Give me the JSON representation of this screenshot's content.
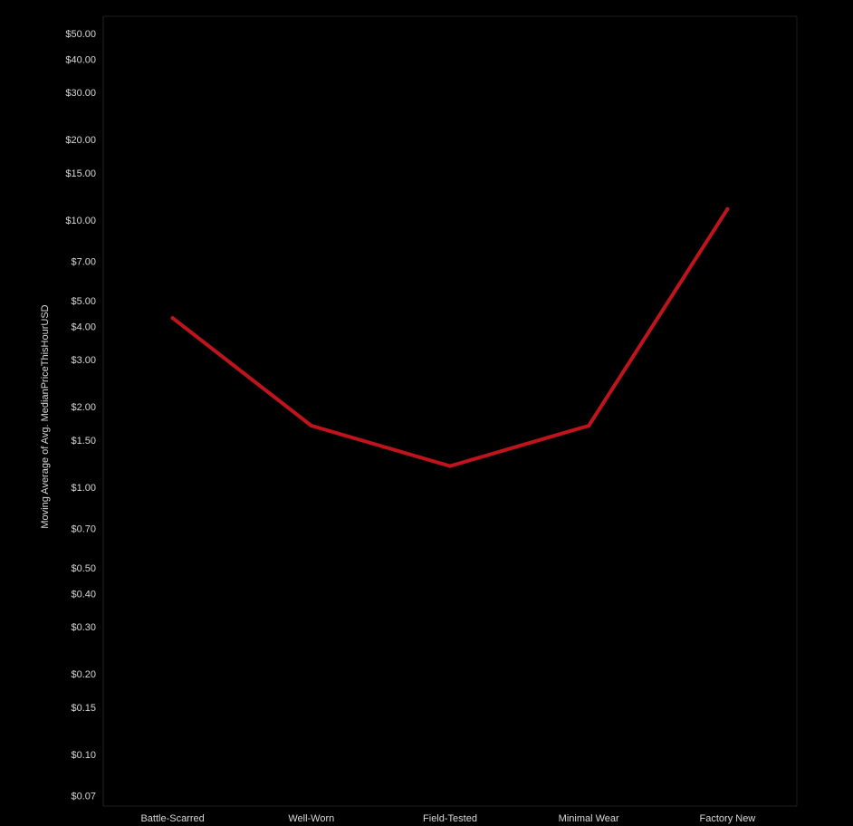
{
  "chart_data": {
    "type": "line",
    "title": "",
    "xlabel": "",
    "ylabel": "Moving Average of Avg. MedianPriceThisHourUSD",
    "y_scale": "log",
    "ylim": [
      0.065,
      60
    ],
    "grid": false,
    "background": "#000000",
    "categories": [
      "Battle-Scarred",
      "Well-Worn",
      "Field-Tested",
      "Minimal Wear",
      "Factory New"
    ],
    "series": [
      {
        "color": "#c0141c",
        "values": [
          4.3,
          1.7,
          1.2,
          1.7,
          11.0
        ]
      }
    ],
    "y_tick_values": [
      50,
      40,
      30,
      20,
      15,
      10,
      7,
      5,
      4,
      3,
      2,
      1.5,
      1,
      0.7,
      0.5,
      0.4,
      0.3,
      0.2,
      0.15,
      0.1,
      0.07
    ],
    "y_tick_labels": [
      "$50.00",
      "$40.00",
      "$30.00",
      "$20.00",
      "$15.00",
      "$10.00",
      "$7.00",
      "$5.00",
      "$4.00",
      "$3.00",
      "$2.00",
      "$1.50",
      "$1.00",
      "$0.70",
      "$0.50",
      "$0.40",
      "$0.30",
      "$0.20",
      "$0.15",
      "$0.10",
      "$0.07"
    ]
  }
}
